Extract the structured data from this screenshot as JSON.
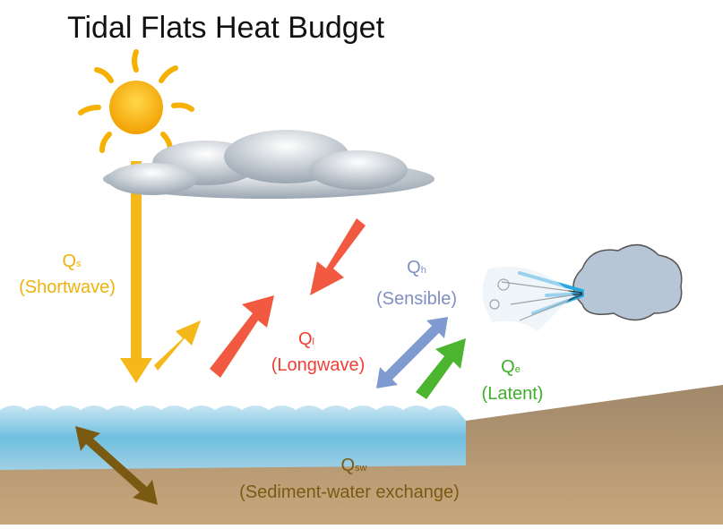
{
  "title": "Tidal Flats Heat Budget",
  "fluxes": [
    {
      "symbol": "Q",
      "subscript": "s",
      "name": "(Shortwave)"
    },
    {
      "symbol": "Q",
      "subscript": "l",
      "name": "(Longwave)"
    },
    {
      "symbol": "Q",
      "subscript": "h",
      "name": "(Sensible)"
    },
    {
      "symbol": "Q",
      "subscript": "e",
      "name": "(Latent)"
    },
    {
      "symbol": "Q",
      "subscript": "sw",
      "name": "(Sediment-water exchange)"
    }
  ]
}
